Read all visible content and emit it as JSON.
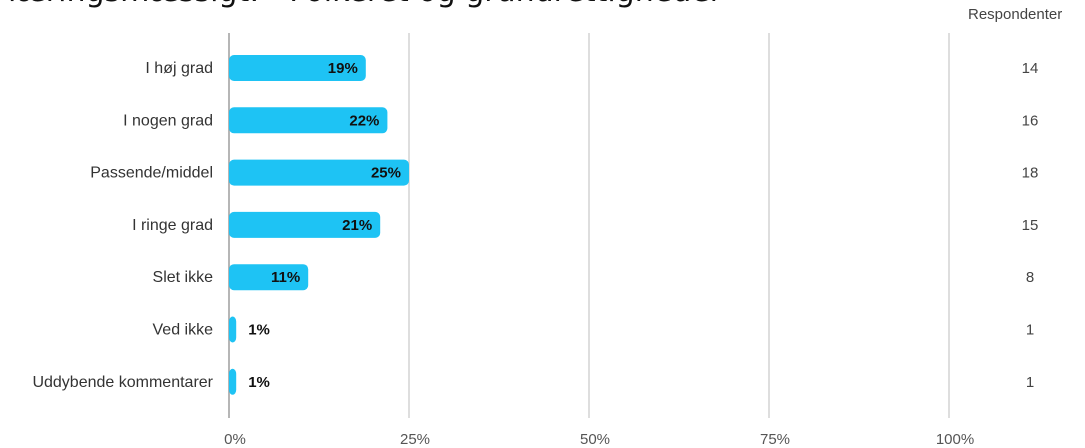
{
  "title": "læringsmæssigt: - Folkeret og grundrettigheder",
  "respondents_header": "Respondenter",
  "chart_data": {
    "type": "bar",
    "orientation": "horizontal",
    "categories": [
      "I høj grad",
      "I nogen grad",
      "Passende/middel",
      "I ringe grad",
      "Slet ikke",
      "Ved ikke",
      "Uddybende kommentarer"
    ],
    "values": [
      19,
      22,
      25,
      21,
      11,
      1,
      1
    ],
    "value_labels": [
      "19%",
      "22%",
      "25%",
      "21%",
      "11%",
      "1%",
      "1%"
    ],
    "respondents": [
      14,
      16,
      18,
      15,
      8,
      1,
      1
    ],
    "xlim": [
      0,
      100
    ],
    "xticks": [
      "0%",
      "25%",
      "50%",
      "75%",
      "100%"
    ],
    "grid": true,
    "bar_color": "#1ec3f4"
  }
}
